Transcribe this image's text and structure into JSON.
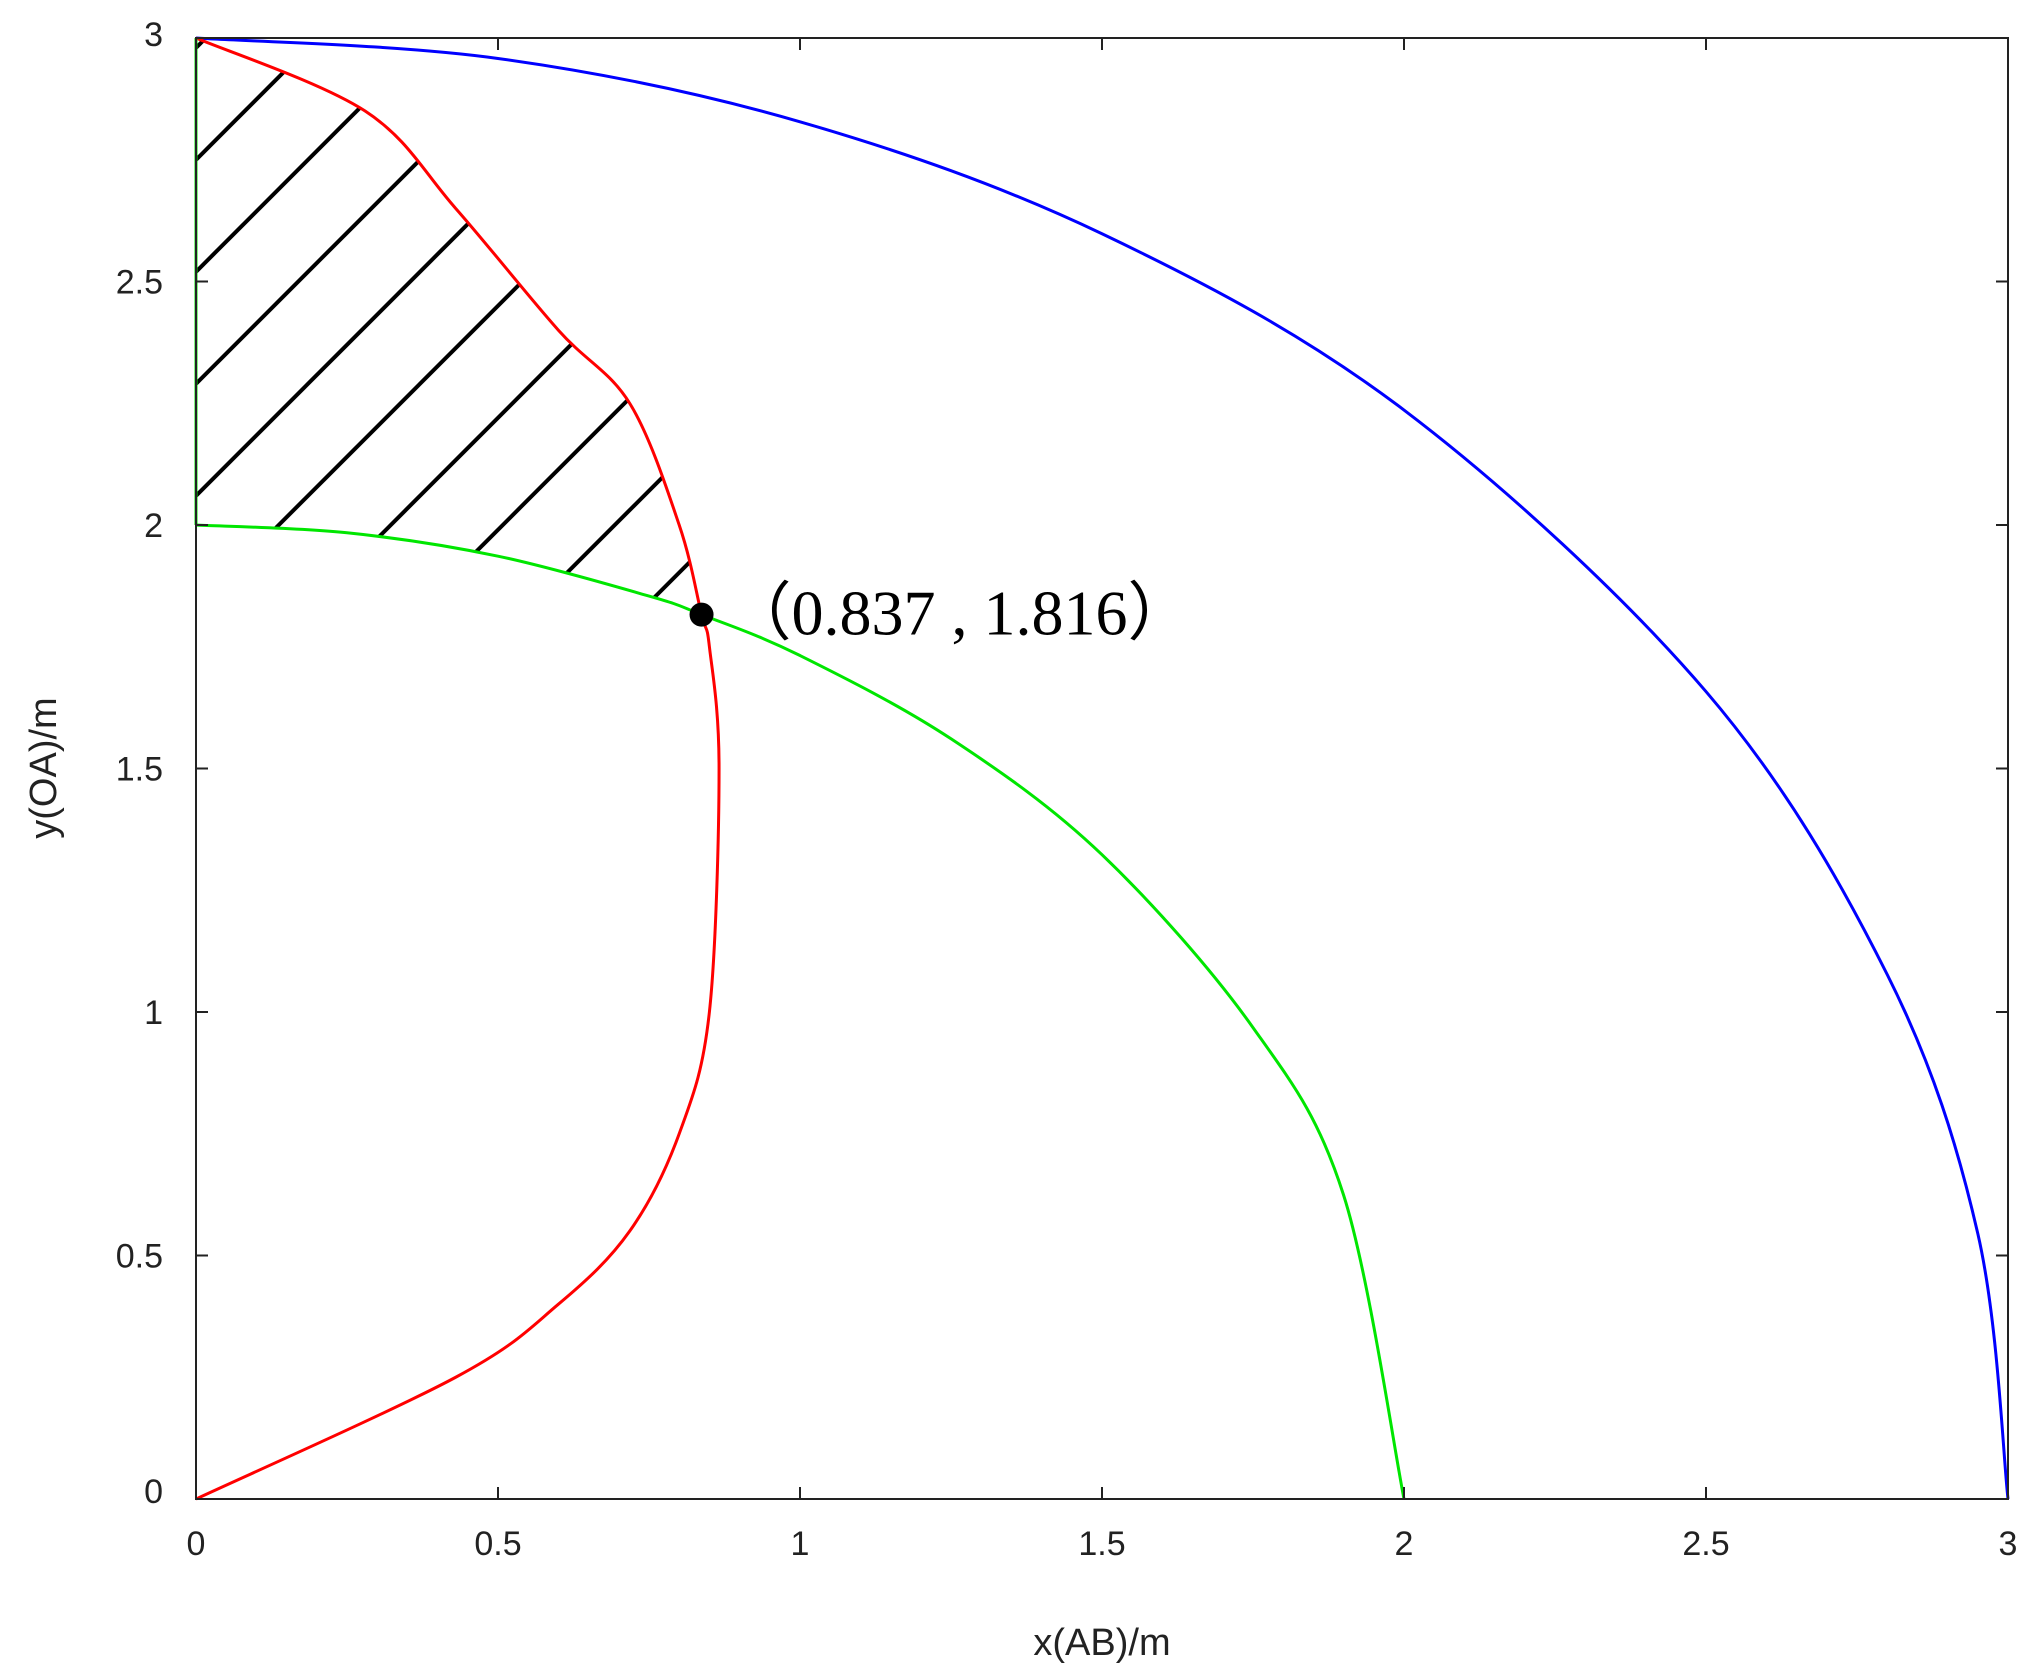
{
  "chart_data": {
    "type": "line",
    "title": "",
    "xlabel": "x(AB)/m",
    "ylabel": "y(OA)/m",
    "xlim": [
      0,
      3
    ],
    "ylim": [
      0,
      3
    ],
    "xticks": [
      "0",
      "0.5",
      "1",
      "1.5",
      "2",
      "2.5",
      "3"
    ],
    "yticks": [
      "0",
      "0.5",
      "1",
      "1.5",
      "2",
      "2.5",
      "3"
    ],
    "grid": false,
    "legend": "none",
    "series": [
      {
        "color": "#0000ff",
        "x": [
          0,
          0.5,
          1.0,
          1.5,
          2.0,
          2.5,
          2.8,
          2.95,
          3.0
        ],
        "y": [
          3.0,
          2.958,
          2.828,
          2.598,
          2.236,
          1.658,
          1.077,
          0.545,
          0
        ]
      },
      {
        "color": "#00e600",
        "x": [
          0,
          0.25,
          0.5,
          0.75,
          0.837,
          1.0,
          1.25,
          1.5,
          1.75,
          1.9,
          2.0
        ],
        "y": [
          2.0,
          1.984,
          1.936,
          1.854,
          1.816,
          1.732,
          1.561,
          1.323,
          0.968,
          0.624,
          0
        ]
      },
      {
        "color": "#ff0000",
        "x": [
          0,
          0.43,
          0.6,
          0.718,
          0.8,
          0.85,
          0.866,
          0.85,
          0.837,
          0.8,
          0.718,
          0.6,
          0.43,
          0.28,
          0
        ],
        "y": [
          0,
          0.25,
          0.4,
          0.55,
          0.75,
          1.0,
          1.5,
          1.75,
          1.816,
          2.0,
          2.25,
          2.4,
          2.65,
          2.85,
          3.0
        ]
      },
      {
        "color": "#00e600",
        "x": [
          0,
          0
        ],
        "y": [
          2.0,
          3.0
        ]
      }
    ],
    "annotations": [
      {
        "text": "（0.837 , 1.816）",
        "x": 0.837,
        "y": 1.816
      }
    ]
  }
}
